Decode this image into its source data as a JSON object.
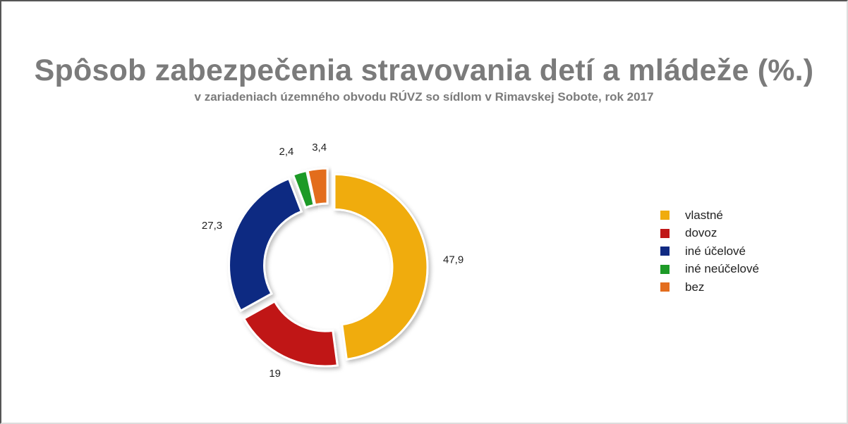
{
  "chart_data": {
    "type": "pie",
    "donut": true,
    "title": "Spôsob zabezpečenia stravovania detí a mládeže (%.)",
    "subtitle": "v zariadeniach územného obvodu RÚVZ so sídlom v Rimavskej Sobote, rok 2017",
    "legend_position": "right",
    "slices": [
      {
        "label": "vlastné",
        "value": 47.9,
        "display": "47,9",
        "color": "#f0ac0e"
      },
      {
        "label": "dovoz",
        "value": 19,
        "display": "19",
        "color": "#c01717"
      },
      {
        "label": "iné účelové",
        "value": 27.3,
        "display": "27,3",
        "color": "#102a82"
      },
      {
        "label": "iné neúčelové",
        "value": 2.4,
        "display": "2,4",
        "color": "#1d9a27"
      },
      {
        "label": "bez",
        "value": 3.4,
        "display": "3,4",
        "color": "#e36d1e"
      }
    ]
  }
}
